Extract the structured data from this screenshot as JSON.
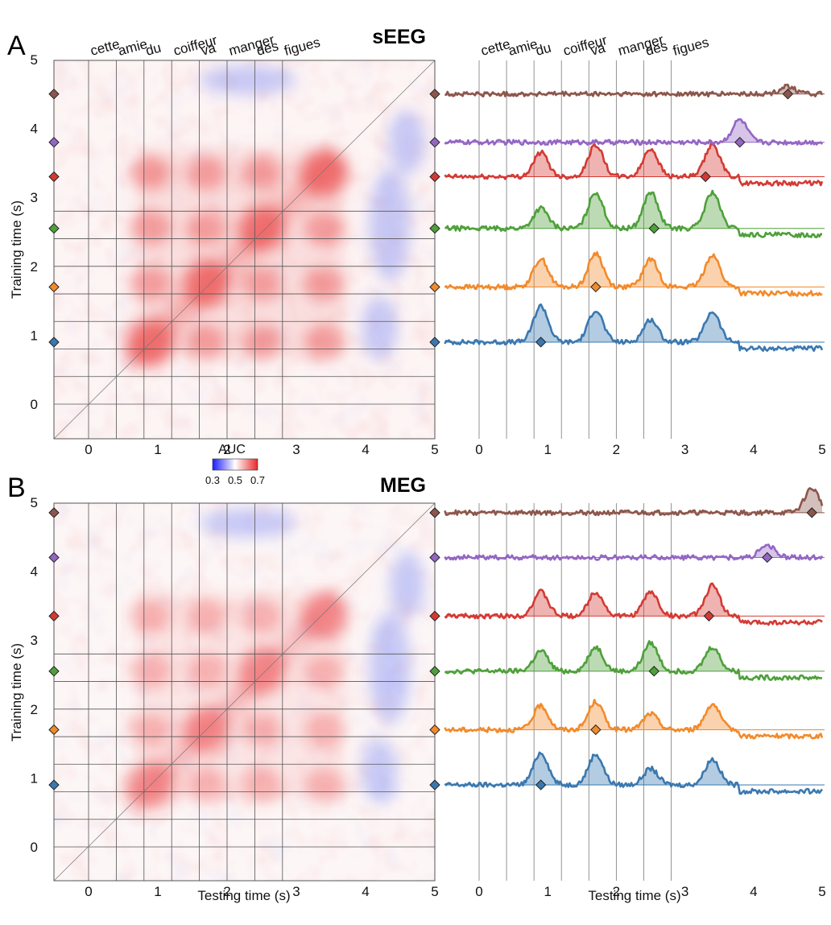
{
  "chart_data": [
    {
      "type": "heatmap",
      "panel_label": "A",
      "title": "sEEG",
      "xlabel": "Testing time (s)",
      "ylabel": "Training time (s)",
      "xlim": [
        -0.5,
        5
      ],
      "ylim": [
        -0.5,
        5
      ],
      "xticks": [
        0,
        1,
        2,
        3,
        4,
        5
      ],
      "yticks": [
        0,
        1,
        2,
        3,
        4,
        5
      ],
      "word_labels": [
        "cette",
        "amie",
        "du",
        "coiffeur",
        "va",
        "manger",
        "des",
        "figues"
      ],
      "word_onsets": [
        0,
        0.4,
        0.8,
        1.2,
        1.6,
        2.0,
        2.4,
        2.8
      ],
      "peak_auc": 0.7,
      "word_blobs": [
        {
          "test": 0.9,
          "train": 0.9
        },
        {
          "test": 1.7,
          "train": 0.9
        },
        {
          "test": 2.5,
          "train": 0.9
        },
        {
          "test": 3.4,
          "train": 0.9
        },
        {
          "test": 0.9,
          "train": 1.75
        },
        {
          "test": 1.7,
          "train": 1.75
        },
        {
          "test": 2.5,
          "train": 1.75
        },
        {
          "test": 3.4,
          "train": 1.75
        },
        {
          "test": 0.9,
          "train": 2.55
        },
        {
          "test": 1.7,
          "train": 2.55
        },
        {
          "test": 2.5,
          "train": 2.55
        },
        {
          "test": 3.4,
          "train": 2.55
        },
        {
          "test": 0.9,
          "train": 3.35
        },
        {
          "test": 1.7,
          "train": 3.35
        },
        {
          "test": 2.5,
          "train": 3.35
        },
        {
          "test": 3.4,
          "train": 3.35
        }
      ],
      "diagonal_line": true,
      "grid": "word onsets"
    },
    {
      "type": "line",
      "panel_label": "A",
      "xlabel": "Testing time (s)",
      "xlim": [
        -0.5,
        5
      ],
      "xticks": [
        0,
        1,
        2,
        3,
        4,
        5
      ],
      "description_of_series": "AUC time courses for classifiers trained at the marked training times; shaded = above baseline",
      "series": [
        {
          "train_time": 0.9,
          "color": "#3a78b0",
          "peaks": [
            [
              0.9,
              0.45
            ],
            [
              1.7,
              0.4
            ],
            [
              2.5,
              0.28
            ],
            [
              3.4,
              0.38
            ]
          ]
        },
        {
          "train_time": 1.7,
          "color": "#f28a2b",
          "peaks": [
            [
              0.9,
              0.35
            ],
            [
              1.7,
              0.42
            ],
            [
              2.5,
              0.35
            ],
            [
              3.4,
              0.4
            ]
          ]
        },
        {
          "train_time": 2.55,
          "color": "#4ea03a",
          "peaks": [
            [
              0.9,
              0.25
            ],
            [
              1.7,
              0.45
            ],
            [
              2.5,
              0.45
            ],
            [
              3.4,
              0.45
            ]
          ]
        },
        {
          "train_time": 3.3,
          "color": "#d43a34",
          "peaks": [
            [
              0.9,
              0.3
            ],
            [
              1.7,
              0.4
            ],
            [
              2.5,
              0.35
            ],
            [
              3.4,
              0.4
            ]
          ]
        },
        {
          "train_time": 3.8,
          "color": "#9466c4",
          "peaks": [
            [
              3.8,
              0.28
            ]
          ]
        },
        {
          "train_time": 4.5,
          "color": "#8c564b",
          "peaks": [
            [
              4.5,
              0.1
            ]
          ]
        }
      ]
    },
    {
      "type": "heatmap",
      "panel_label": "B",
      "title": "MEG",
      "xlabel": "Testing time (s)",
      "ylabel": "Training time (s)",
      "xlim": [
        -0.5,
        5
      ],
      "ylim": [
        -0.5,
        5
      ],
      "xticks": [
        0,
        1,
        2,
        3,
        4,
        5
      ],
      "yticks": [
        0,
        1,
        2,
        3,
        4,
        5
      ],
      "word_onsets": [
        0,
        0.4,
        0.8,
        1.2,
        1.6,
        2.0,
        2.4,
        2.8
      ],
      "peak_auc": 0.62,
      "word_blobs": [
        {
          "test": 0.9,
          "train": 0.9
        },
        {
          "test": 1.7,
          "train": 0.9
        },
        {
          "test": 2.5,
          "train": 0.9
        },
        {
          "test": 3.4,
          "train": 0.9
        },
        {
          "test": 0.9,
          "train": 1.7
        },
        {
          "test": 1.7,
          "train": 1.7
        },
        {
          "test": 2.5,
          "train": 1.7
        },
        {
          "test": 3.4,
          "train": 1.7
        },
        {
          "test": 0.9,
          "train": 2.55
        },
        {
          "test": 1.7,
          "train": 2.55
        },
        {
          "test": 2.5,
          "train": 2.55
        },
        {
          "test": 3.4,
          "train": 2.55
        },
        {
          "test": 0.9,
          "train": 3.35
        },
        {
          "test": 1.7,
          "train": 3.35
        },
        {
          "test": 2.5,
          "train": 3.35
        },
        {
          "test": 3.4,
          "train": 3.35
        }
      ],
      "diagonal_line": true,
      "grid": "word onsets"
    },
    {
      "type": "line",
      "panel_label": "B",
      "xlabel": "Testing time (s)",
      "xlim": [
        -0.5,
        5
      ],
      "xticks": [
        0,
        1,
        2,
        3,
        4,
        5
      ],
      "series": [
        {
          "train_time": 0.9,
          "color": "#3a78b0",
          "peaks": [
            [
              0.9,
              0.4
            ],
            [
              1.7,
              0.38
            ],
            [
              2.5,
              0.2
            ],
            [
              3.4,
              0.32
            ]
          ]
        },
        {
          "train_time": 1.7,
          "color": "#f28a2b",
          "peaks": [
            [
              0.9,
              0.3
            ],
            [
              1.7,
              0.35
            ],
            [
              2.5,
              0.2
            ],
            [
              3.4,
              0.32
            ]
          ]
        },
        {
          "train_time": 2.55,
          "color": "#4ea03a",
          "peaks": [
            [
              0.9,
              0.25
            ],
            [
              1.7,
              0.3
            ],
            [
              2.5,
              0.35
            ],
            [
              3.4,
              0.3
            ]
          ]
        },
        {
          "train_time": 3.35,
          "color": "#d43a34",
          "peaks": [
            [
              0.9,
              0.3
            ],
            [
              1.7,
              0.3
            ],
            [
              2.5,
              0.3
            ],
            [
              3.4,
              0.38
            ]
          ]
        },
        {
          "train_time": 4.2,
          "color": "#9466c4",
          "peaks": [
            [
              4.2,
              0.15
            ]
          ]
        },
        {
          "train_time": 4.85,
          "color": "#8c564b",
          "peaks": [
            [
              4.85,
              0.3
            ]
          ]
        }
      ]
    }
  ],
  "colorbar": {
    "title": "AUC",
    "ticks": [
      "0.3",
      "0.5",
      "0.7"
    ],
    "colors": [
      "#1b1bff",
      "#ffffff",
      "#e8282a"
    ]
  }
}
